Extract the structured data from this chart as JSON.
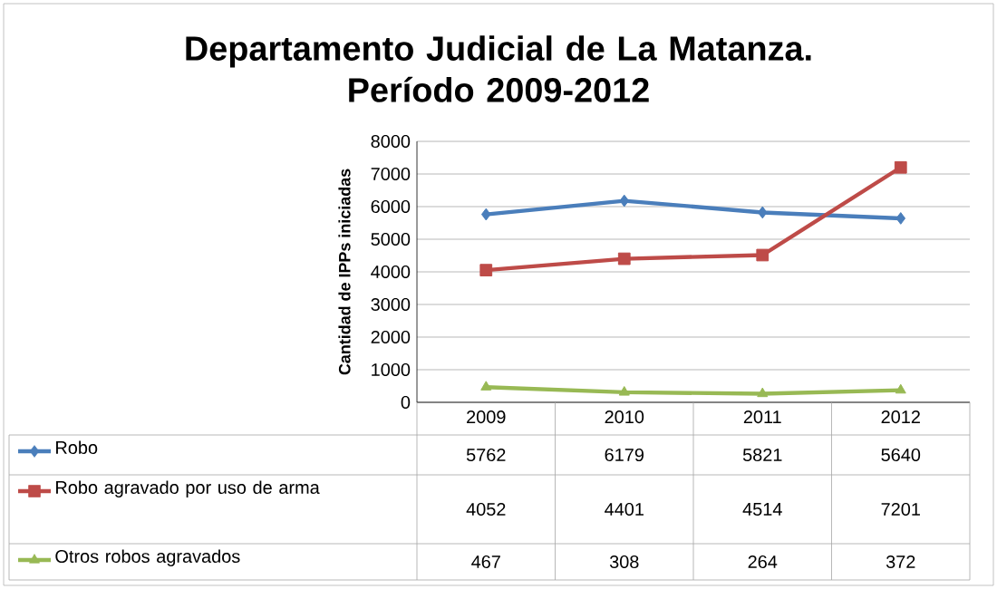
{
  "chart_data": {
    "type": "line",
    "title": "Departamento Judicial de La Matanza.\nPeríodo  2009-2012",
    "ylabel": "Cantidad de IPPs iniciadas",
    "categories": [
      "2009",
      "2010",
      "2011",
      "2012"
    ],
    "ylim": [
      0,
      8000
    ],
    "yticks": [
      0,
      1000,
      2000,
      3000,
      4000,
      5000,
      6000,
      7000,
      8000
    ],
    "grid": "y",
    "legend": "bottom",
    "data_labels": true,
    "series": [
      {
        "name": "Robo",
        "color": "#4a7ebb",
        "marker": "diamond",
        "values": [
          5762,
          6179,
          5821,
          5640
        ]
      },
      {
        "name": "Robo agravado por uso de arma",
        "color": "#be4b48",
        "marker": "square",
        "values": [
          4052,
          4401,
          4514,
          7201
        ]
      },
      {
        "name": "Otros robos agravados",
        "color": "#98b954",
        "marker": "triangle",
        "values": [
          467,
          308,
          264,
          372
        ]
      }
    ]
  }
}
